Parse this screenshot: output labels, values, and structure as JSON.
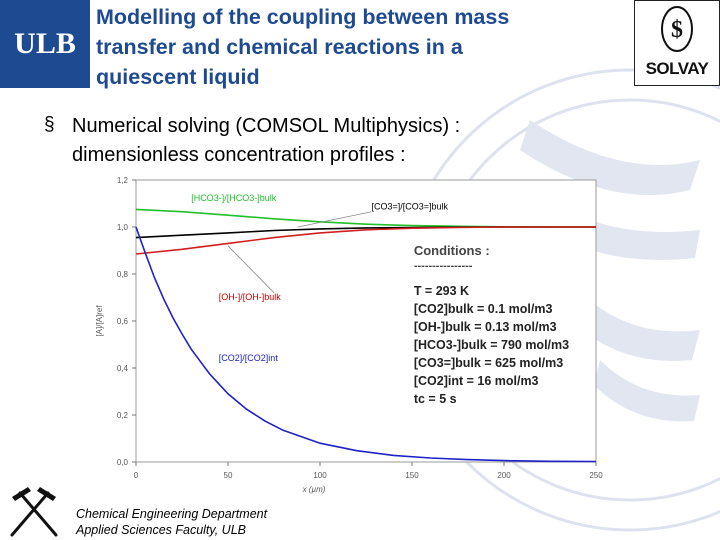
{
  "header": {
    "logo_text": "ULB",
    "title_lines": [
      "Modelling of the coupling between mass",
      "transfer and chemical reactions in a",
      "quiescent liquid"
    ],
    "partner_logo_text": "SOLVAY"
  },
  "bullet": {
    "marker": "§",
    "lines": [
      "Numerical solving (COMSOL Multiphysics) :",
      "dimensionless concentration profiles :"
    ]
  },
  "footer": {
    "line1": "Chemical Engineering Department",
    "line2": "Applied Sciences Faculty, ULB"
  },
  "colors": {
    "ulb_blue": "#1d4a91",
    "series_green": "#22c02a",
    "series_black": "#000000",
    "series_red": "#d21e1e",
    "series_blue": "#1e22c8",
    "label_red": "#cc0000",
    "label_blue": "#1e22c8"
  },
  "chart_data": {
    "type": "line",
    "xlabel": "x (µm)",
    "ylabel": "[A]/[A]ref",
    "xlim": [
      0,
      250
    ],
    "ylim": [
      0,
      1.2
    ],
    "x_ticks": [
      "0",
      "50",
      "100",
      "150",
      "200",
      "250"
    ],
    "y_ticks": [
      "0,0",
      "0,2",
      "0,4",
      "0,6",
      "0,8",
      "1,0",
      "1,2"
    ],
    "grid": false,
    "series": [
      {
        "name": "[HCO3-]/[HCO3-]bulk",
        "color": "#22c02a",
        "x": [
          0,
          25,
          50,
          75,
          100,
          125,
          150,
          175,
          200,
          225,
          250
        ],
        "y": [
          1.075,
          1.065,
          1.05,
          1.035,
          1.022,
          1.012,
          1.006,
          1.003,
          1.001,
          1.0,
          1.0
        ]
      },
      {
        "name": "[CO3=]/[CO3=]bulk",
        "color": "#000000",
        "x": [
          0,
          25,
          50,
          75,
          100,
          125,
          150,
          175,
          200,
          225,
          250
        ],
        "y": [
          0.955,
          0.965,
          0.975,
          0.985,
          0.992,
          0.996,
          0.998,
          0.999,
          1.0,
          1.0,
          1.0
        ]
      },
      {
        "name": "[OH-]/[OH-]bulk",
        "color": "#d21e1e",
        "x": [
          0,
          25,
          50,
          75,
          100,
          125,
          150,
          175,
          200,
          225,
          250
        ],
        "y": [
          0.885,
          0.905,
          0.93,
          0.955,
          0.975,
          0.988,
          0.995,
          0.998,
          1.0,
          1.0,
          1.0
        ]
      },
      {
        "name": "[CO2]/[CO2]int",
        "color": "#1e22c8",
        "x": [
          0,
          5,
          10,
          15,
          20,
          25,
          30,
          40,
          50,
          60,
          70,
          80,
          100,
          120,
          140,
          160,
          180,
          200,
          225,
          250
        ],
        "y": [
          1.0,
          0.89,
          0.785,
          0.695,
          0.615,
          0.545,
          0.48,
          0.375,
          0.29,
          0.225,
          0.175,
          0.135,
          0.08,
          0.048,
          0.028,
          0.017,
          0.01,
          0.006,
          0.003,
          0.002
        ]
      }
    ],
    "labels": [
      {
        "series": "[HCO3-]/[HCO3-]bulk",
        "text": "[HCO3-]/[HCO3-]bulk",
        "color": "#22c02a"
      },
      {
        "series": "[CO3=]/[CO3=]bulk",
        "text": "[CO3=]/[CO3=]bulk",
        "color": "#000000"
      },
      {
        "series": "[OH-]/[OH-]bulk",
        "text": "[OH-]/[OH-]bulk",
        "color": "#cc0000"
      },
      {
        "series": "[CO2]/[CO2]int",
        "text": "[CO2]/[CO2]int",
        "color": "#1e22c8"
      }
    ],
    "conditions": {
      "heading": "Conditions :",
      "underline": "----------------",
      "lines": [
        "T = 293 K",
        "[CO2]bulk = 0.1 mol/m3",
        "[OH-]bulk = 0.13 mol/m3",
        "[HCO3-]bulk = 790 mol/m3",
        "[CO3=]bulk = 625 mol/m3",
        "[CO2]int = 16 mol/m3",
        "tc = 5 s"
      ]
    }
  }
}
